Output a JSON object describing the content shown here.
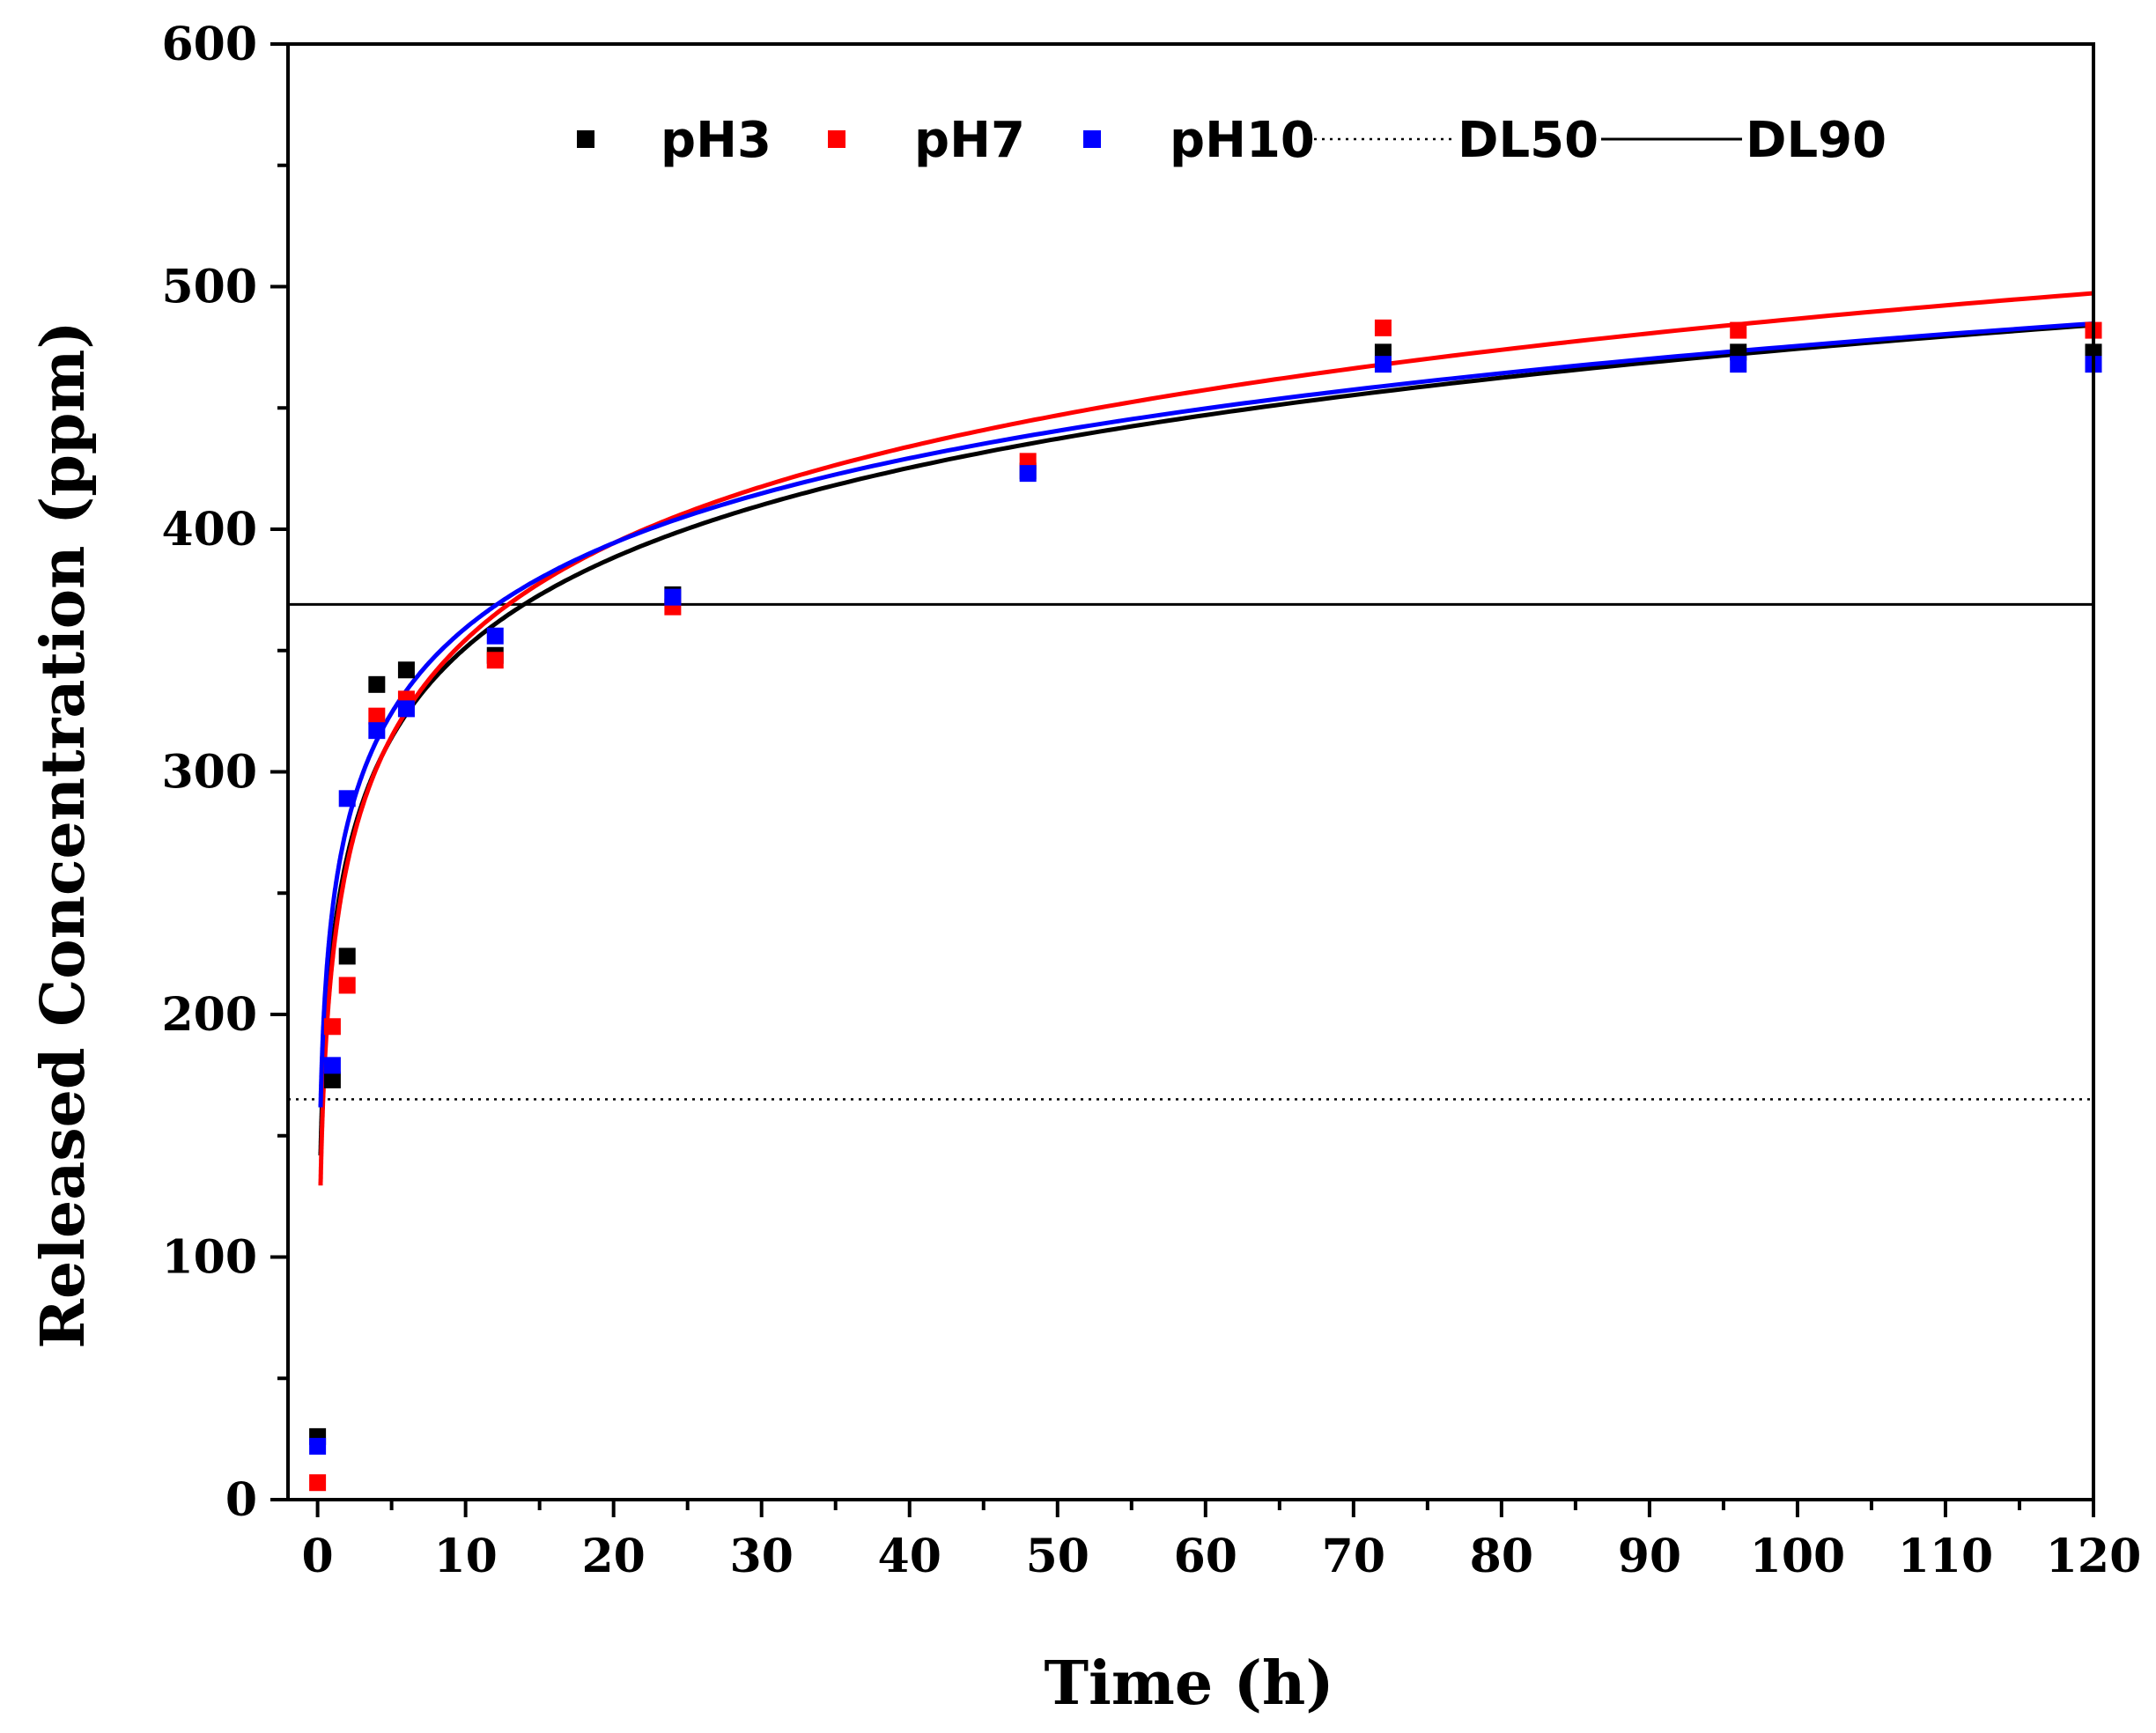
{
  "chart_data": {
    "type": "scatter",
    "title": "",
    "xlabel": "Time (h)",
    "ylabel": "Released Concentration (ppm)",
    "xlim": [
      -2,
      120
    ],
    "ylim": [
      0,
      600
    ],
    "xticks": [
      "0",
      "10",
      "20",
      "30",
      "40",
      "50",
      "60",
      "70",
      "80",
      "90",
      "100",
      "110",
      "120"
    ],
    "yticks": [
      "0",
      "100",
      "200",
      "300",
      "400",
      "500",
      "600"
    ],
    "grid": false,
    "legend_position": "top",
    "series": [
      {
        "name": "pH3",
        "color": "#000000",
        "marker": "square",
        "points": [
          [
            0,
            26
          ],
          [
            1,
            173
          ],
          [
            2,
            224
          ],
          [
            4,
            336
          ],
          [
            6,
            342
          ],
          [
            12,
            348
          ],
          [
            24,
            373
          ],
          [
            48,
            424
          ],
          [
            72,
            473
          ],
          [
            96,
            473
          ],
          [
            120,
            473
          ]
        ],
        "fit": {
          "type": "log",
          "a": 228,
          "b": 53.5
        }
      },
      {
        "name": "pH7",
        "color": "#ff0000",
        "marker": "square",
        "points": [
          [
            0,
            7
          ],
          [
            1,
            195
          ],
          [
            2,
            212
          ],
          [
            4,
            323
          ],
          [
            6,
            330
          ],
          [
            12,
            346
          ],
          [
            24,
            368
          ],
          [
            48,
            428
          ],
          [
            72,
            483
          ],
          [
            96,
            482
          ],
          [
            120,
            482
          ]
        ],
        "fit": {
          "type": "log",
          "a": 222,
          "b": 57.5
        }
      },
      {
        "name": "pH10",
        "color": "#0000ff",
        "marker": "square",
        "points": [
          [
            0,
            22
          ],
          [
            1,
            179
          ],
          [
            2,
            289
          ],
          [
            4,
            317
          ],
          [
            6,
            326
          ],
          [
            12,
            356
          ],
          [
            24,
            372
          ],
          [
            48,
            423
          ],
          [
            72,
            468
          ],
          [
            96,
            468
          ],
          [
            120,
            468
          ]
        ],
        "fit": {
          "type": "log",
          "a": 243,
          "b": 50.5
        }
      }
    ],
    "reference_lines": [
      {
        "name": "DL50",
        "y": 165,
        "style": "dotted",
        "color": "#000000"
      },
      {
        "name": "DL90",
        "y": 369,
        "style": "solid",
        "color": "#000000"
      }
    ]
  }
}
